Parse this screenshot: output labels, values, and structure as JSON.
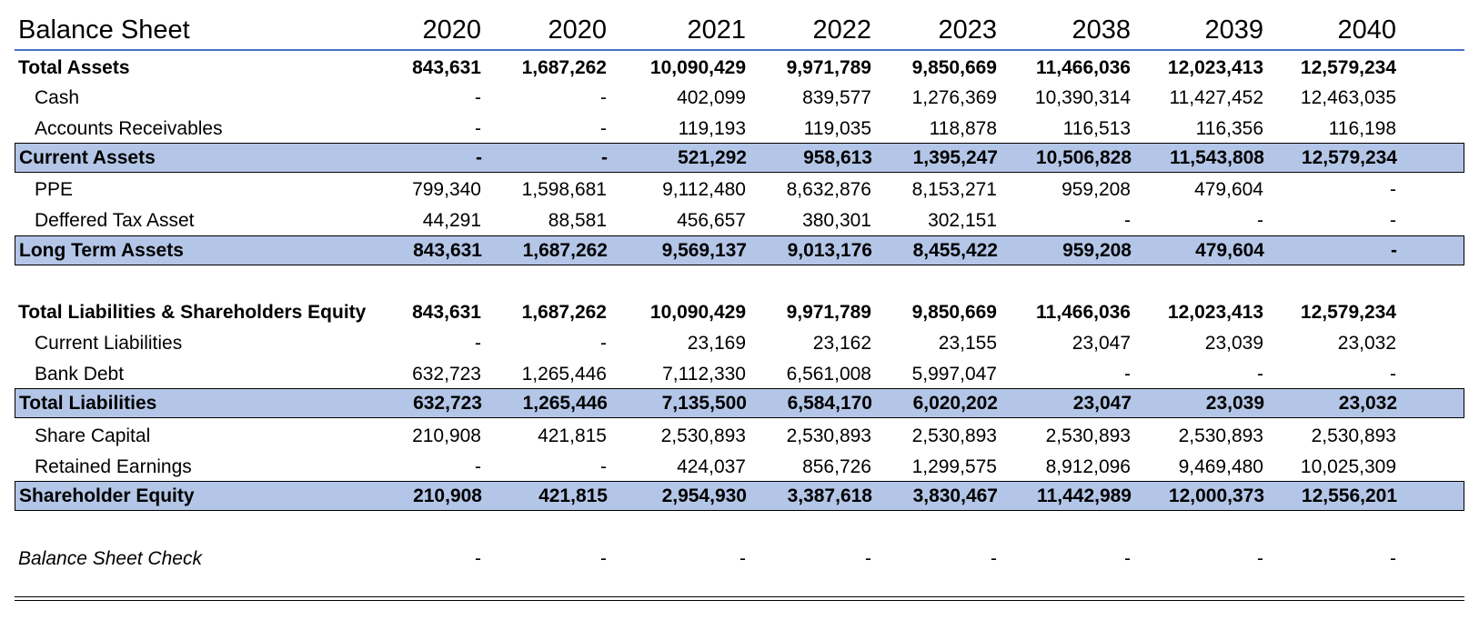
{
  "sheet": {
    "title": "Balance Sheet",
    "years": [
      "2020",
      "2020",
      "2021",
      "2022",
      "2023",
      "2038",
      "2039",
      "2040"
    ],
    "colors": {
      "header_rule": "#4472c4",
      "highlight_fill": "#b4c6e7",
      "border": "#000000"
    },
    "rows": {
      "total_assets": {
        "label": "Total Assets",
        "values": [
          "843,631",
          "1,687,262",
          "10,090,429",
          "9,971,789",
          "9,850,669",
          "11,466,036",
          "12,023,413",
          "12,579,234"
        ]
      },
      "cash": {
        "label": "Cash",
        "values": [
          "-",
          "-",
          "402,099",
          "839,577",
          "1,276,369",
          "10,390,314",
          "11,427,452",
          "12,463,035"
        ]
      },
      "accounts_receivables": {
        "label": "Accounts Receivables",
        "values": [
          "-",
          "-",
          "119,193",
          "119,035",
          "118,878",
          "116,513",
          "116,356",
          "116,198"
        ]
      },
      "current_assets": {
        "label": "Current Assets",
        "values": [
          "-",
          "-",
          "521,292",
          "958,613",
          "1,395,247",
          "10,506,828",
          "11,543,808",
          "12,579,234"
        ]
      },
      "ppe": {
        "label": "PPE",
        "values": [
          "799,340",
          "1,598,681",
          "9,112,480",
          "8,632,876",
          "8,153,271",
          "959,208",
          "479,604",
          "-"
        ]
      },
      "deferred_tax_asset": {
        "label": "Deffered Tax Asset",
        "values": [
          "44,291",
          "88,581",
          "456,657",
          "380,301",
          "302,151",
          "-",
          "-",
          "-"
        ]
      },
      "long_term_assets": {
        "label": "Long Term Assets",
        "values": [
          "843,631",
          "1,687,262",
          "9,569,137",
          "9,013,176",
          "8,455,422",
          "959,208",
          "479,604",
          "-"
        ]
      },
      "total_liabilities_equity": {
        "label": "Total Liabilities & Shareholders Equity",
        "values": [
          "843,631",
          "1,687,262",
          "10,090,429",
          "9,971,789",
          "9,850,669",
          "11,466,036",
          "12,023,413",
          "12,579,234"
        ]
      },
      "current_liabilities": {
        "label": "Current Liabilities",
        "values": [
          "-",
          "-",
          "23,169",
          "23,162",
          "23,155",
          "23,047",
          "23,039",
          "23,032"
        ]
      },
      "bank_debt": {
        "label": "Bank Debt",
        "values": [
          "632,723",
          "1,265,446",
          "7,112,330",
          "6,561,008",
          "5,997,047",
          "-",
          "-",
          "-"
        ]
      },
      "total_liabilities": {
        "label": "Total Liabilities",
        "values": [
          "632,723",
          "1,265,446",
          "7,135,500",
          "6,584,170",
          "6,020,202",
          "23,047",
          "23,039",
          "23,032"
        ]
      },
      "share_capital": {
        "label": "Share Capital",
        "values": [
          "210,908",
          "421,815",
          "2,530,893",
          "2,530,893",
          "2,530,893",
          "2,530,893",
          "2,530,893",
          "2,530,893"
        ]
      },
      "retained_earnings": {
        "label": "Retained Earnings",
        "values": [
          "-",
          "-",
          "424,037",
          "856,726",
          "1,299,575",
          "8,912,096",
          "9,469,480",
          "10,025,309"
        ]
      },
      "shareholder_equity": {
        "label": "Shareholder Equity",
        "values": [
          "210,908",
          "421,815",
          "2,954,930",
          "3,387,618",
          "3,830,467",
          "11,442,989",
          "12,000,373",
          "12,556,201"
        ]
      },
      "balance_sheet_check": {
        "label": "Balance Sheet Check",
        "values": [
          "-",
          "-",
          "-",
          "-",
          "-",
          "-",
          "-",
          "-"
        ]
      }
    }
  }
}
